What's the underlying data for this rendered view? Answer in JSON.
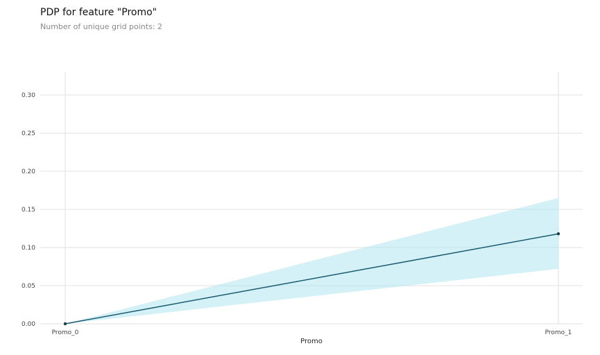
{
  "title": "PDP for feature \"Promo\"",
  "subtitle": "Number of unique grid points: 2",
  "chart_data": {
    "type": "line",
    "title": "PDP for feature \"Promo\"",
    "subtitle": "Number of unique grid points: 2",
    "xlabel": "Promo",
    "ylabel": "",
    "categories": [
      "Promo_0",
      "Promo_1"
    ],
    "series": [
      {
        "values": [
          0.0,
          0.118
        ]
      }
    ],
    "band": {
      "lower": [
        0.0,
        0.072
      ],
      "upper": [
        0.0,
        0.165
      ]
    },
    "ylim": [
      0,
      0.33
    ],
    "yticks": [
      "0.00",
      "0.05",
      "0.10",
      "0.15",
      "0.20",
      "0.25",
      "0.30"
    ],
    "grid": true,
    "colors": {
      "line": "#1a5a6e",
      "band": "#aee6ee",
      "marker": "#1a3d4a",
      "grid": "#e2e2e2"
    }
  }
}
